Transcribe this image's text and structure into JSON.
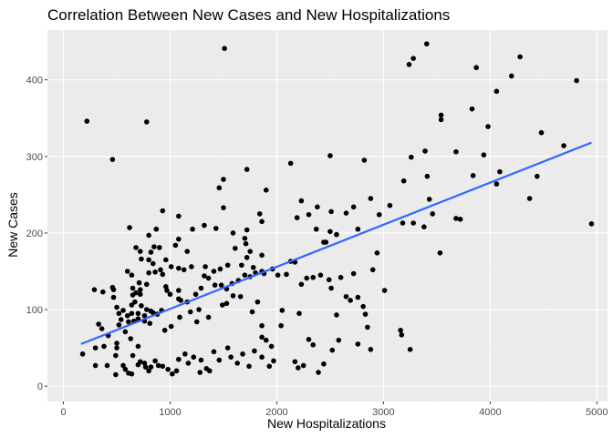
{
  "chart_data": {
    "type": "scatter",
    "title": "Correlation Between New Cases and New Hospitalizations",
    "xlabel": "New Hospitalizations",
    "ylabel": "New Cases",
    "xlim": [
      -150,
      5100
    ],
    "ylim": [
      -20,
      465
    ],
    "xticks": [
      0,
      1000,
      2000,
      3000,
      4000,
      5000
    ],
    "yticks": [
      0,
      100,
      200,
      300,
      400
    ],
    "xtick_labels": [
      "0",
      "1000",
      "2000",
      "3000",
      "4000",
      "5000"
    ],
    "ytick_labels": [
      "0",
      "100",
      "200",
      "300",
      "400"
    ],
    "grid": true,
    "trend_line": {
      "method": "linear",
      "x": [
        165,
        4950
      ],
      "y": [
        55,
        318
      ],
      "color": "#3366FF"
    },
    "colors": {
      "panel": "#EBEBEB",
      "grid_major": "#FFFFFF",
      "grid_minor": "#F2F2F2",
      "point": "#000000"
    },
    "points": [
      [
        220,
        346
      ],
      [
        460,
        296
      ],
      [
        780,
        345
      ],
      [
        1080,
        222
      ],
      [
        930,
        229
      ],
      [
        1510,
        441
      ],
      [
        3405,
        447
      ],
      [
        3280,
        428
      ],
      [
        3240,
        420
      ],
      [
        3870,
        416
      ],
      [
        4280,
        430
      ],
      [
        4200,
        405
      ],
      [
        4810,
        399
      ],
      [
        3830,
        362
      ],
      [
        4060,
        385
      ],
      [
        3540,
        354
      ],
      [
        3540,
        348
      ],
      [
        3980,
        339
      ],
      [
        3680,
        306
      ],
      [
        3390,
        307
      ],
      [
        3260,
        299
      ],
      [
        3940,
        302
      ],
      [
        4480,
        331
      ],
      [
        4690,
        314
      ],
      [
        2130,
        291
      ],
      [
        1720,
        283
      ],
      [
        2500,
        301
      ],
      [
        2820,
        295
      ],
      [
        1500,
        270
      ],
      [
        1460,
        259
      ],
      [
        1900,
        256
      ],
      [
        3840,
        275
      ],
      [
        3410,
        274
      ],
      [
        4090,
        280
      ],
      [
        4060,
        264
      ],
      [
        4370,
        245
      ],
      [
        4440,
        274
      ],
      [
        3190,
        268
      ],
      [
        3430,
        244
      ],
      [
        2880,
        245
      ],
      [
        2720,
        234
      ],
      [
        3460,
        225
      ],
      [
        2960,
        224
      ],
      [
        3060,
        236
      ],
      [
        2650,
        226
      ],
      [
        2300,
        224
      ],
      [
        2230,
        242
      ],
      [
        2190,
        220
      ],
      [
        2380,
        234
      ],
      [
        3680,
        219
      ],
      [
        3180,
        213
      ],
      [
        3280,
        213
      ],
      [
        3380,
        208
      ],
      [
        3720,
        218
      ],
      [
        4950,
        212
      ],
      [
        2510,
        228
      ],
      [
        1500,
        233
      ],
      [
        1430,
        206
      ],
      [
        1210,
        205
      ],
      [
        1320,
        210
      ],
      [
        1720,
        204
      ],
      [
        1590,
        200
      ],
      [
        1860,
        215
      ],
      [
        1840,
        225
      ],
      [
        2370,
        205
      ],
      [
        2560,
        198
      ],
      [
        2500,
        202
      ],
      [
        2760,
        205
      ],
      [
        2440,
        188
      ],
      [
        2460,
        188
      ],
      [
        2940,
        174
      ],
      [
        3530,
        174
      ],
      [
        1080,
        192
      ],
      [
        1160,
        176
      ],
      [
        1700,
        193
      ],
      [
        1710,
        186
      ],
      [
        1610,
        180
      ],
      [
        1750,
        176
      ],
      [
        1860,
        171
      ],
      [
        1720,
        168
      ],
      [
        1670,
        158
      ],
      [
        1780,
        155
      ],
      [
        1540,
        158
      ],
      [
        1470,
        153
      ],
      [
        1330,
        156
      ],
      [
        1200,
        156
      ],
      [
        1130,
        152
      ],
      [
        1080,
        154
      ],
      [
        1010,
        156
      ],
      [
        900,
        181
      ],
      [
        850,
        182
      ],
      [
        680,
        181
      ],
      [
        720,
        176
      ],
      [
        620,
        207
      ],
      [
        800,
        165
      ],
      [
        730,
        166
      ],
      [
        840,
        160
      ],
      [
        600,
        150
      ],
      [
        800,
        148
      ],
      [
        860,
        149
      ],
      [
        960,
        165
      ],
      [
        910,
        152
      ],
      [
        930,
        146
      ],
      [
        960,
        130
      ],
      [
        970,
        125
      ],
      [
        1080,
        125
      ],
      [
        1000,
        120
      ],
      [
        1080,
        114
      ],
      [
        1100,
        112
      ],
      [
        1160,
        110
      ],
      [
        1240,
        120
      ],
      [
        1290,
        128
      ],
      [
        1320,
        144
      ],
      [
        1360,
        141
      ],
      [
        1420,
        132
      ],
      [
        1480,
        132
      ],
      [
        1530,
        127
      ],
      [
        1580,
        134
      ],
      [
        1640,
        138
      ],
      [
        1700,
        145
      ],
      [
        1750,
        143
      ],
      [
        1800,
        148
      ],
      [
        1860,
        150
      ],
      [
        1880,
        147
      ],
      [
        1960,
        153
      ],
      [
        2010,
        145
      ],
      [
        2090,
        146
      ],
      [
        2130,
        163
      ],
      [
        2170,
        162
      ],
      [
        2230,
        133
      ],
      [
        2280,
        141
      ],
      [
        2340,
        142
      ],
      [
        2410,
        145
      ],
      [
        2490,
        139
      ],
      [
        2510,
        128
      ],
      [
        2600,
        142
      ],
      [
        2650,
        117
      ],
      [
        2690,
        112
      ],
      [
        2760,
        116
      ],
      [
        2810,
        104
      ],
      [
        2830,
        94
      ],
      [
        2900,
        152
      ],
      [
        2720,
        147
      ],
      [
        3010,
        125
      ],
      [
        2560,
        93
      ],
      [
        2210,
        95
      ],
      [
        2050,
        99
      ],
      [
        2040,
        79
      ],
      [
        1860,
        79
      ],
      [
        1820,
        110
      ],
      [
        1770,
        97
      ],
      [
        1660,
        117
      ],
      [
        1530,
        108
      ],
      [
        1490,
        106
      ],
      [
        1360,
        90
      ],
      [
        1270,
        100
      ],
      [
        1190,
        97
      ],
      [
        1090,
        90
      ],
      [
        1010,
        78
      ],
      [
        950,
        73
      ],
      [
        920,
        99
      ],
      [
        880,
        94
      ],
      [
        840,
        96
      ],
      [
        780,
        100
      ],
      [
        730,
        105
      ],
      [
        670,
        110
      ],
      [
        640,
        106
      ],
      [
        700,
        88
      ],
      [
        760,
        85
      ],
      [
        810,
        82
      ],
      [
        660,
        85
      ],
      [
        610,
        84
      ],
      [
        580,
        71
      ],
      [
        540,
        87
      ],
      [
        520,
        80
      ],
      [
        470,
        126
      ],
      [
        460,
        129
      ],
      [
        470,
        116
      ],
      [
        500,
        103
      ],
      [
        520,
        95
      ],
      [
        560,
        99
      ],
      [
        600,
        92
      ],
      [
        640,
        95
      ],
      [
        700,
        95
      ],
      [
        760,
        92
      ],
      [
        820,
        98
      ],
      [
        680,
        122
      ],
      [
        720,
        126
      ],
      [
        780,
        133
      ],
      [
        720,
        120
      ],
      [
        650,
        128
      ],
      [
        650,
        119
      ],
      [
        370,
        123
      ],
      [
        330,
        81
      ],
      [
        290,
        126
      ],
      [
        360,
        75
      ],
      [
        420,
        66
      ],
      [
        180,
        42
      ],
      [
        300,
        50
      ],
      [
        380,
        52
      ],
      [
        410,
        27
      ],
      [
        300,
        27
      ],
      [
        490,
        40
      ],
      [
        500,
        56
      ],
      [
        500,
        50
      ],
      [
        490,
        15
      ],
      [
        560,
        27
      ],
      [
        580,
        22
      ],
      [
        610,
        17
      ],
      [
        640,
        16
      ],
      [
        700,
        28
      ],
      [
        720,
        32
      ],
      [
        760,
        30
      ],
      [
        770,
        25
      ],
      [
        800,
        20
      ],
      [
        820,
        25
      ],
      [
        860,
        33
      ],
      [
        890,
        27
      ],
      [
        930,
        26
      ],
      [
        980,
        22
      ],
      [
        1020,
        16
      ],
      [
        1060,
        20
      ],
      [
        1080,
        35
      ],
      [
        1140,
        42
      ],
      [
        1170,
        30
      ],
      [
        1220,
        38
      ],
      [
        1280,
        18
      ],
      [
        1290,
        34
      ],
      [
        1340,
        23
      ],
      [
        1370,
        20
      ],
      [
        1410,
        45
      ],
      [
        1460,
        34
      ],
      [
        1540,
        50
      ],
      [
        1570,
        38
      ],
      [
        1630,
        30
      ],
      [
        1680,
        42
      ],
      [
        1740,
        26
      ],
      [
        1790,
        46
      ],
      [
        1860,
        38
      ],
      [
        1900,
        60
      ],
      [
        1950,
        52
      ],
      [
        1970,
        33
      ],
      [
        1930,
        26
      ],
      [
        2170,
        32
      ],
      [
        2200,
        24
      ],
      [
        2250,
        27
      ],
      [
        2300,
        61
      ],
      [
        2340,
        54
      ],
      [
        2390,
        18
      ],
      [
        2440,
        29
      ],
      [
        2520,
        47
      ],
      [
        2580,
        60
      ],
      [
        2760,
        55
      ],
      [
        2850,
        77
      ],
      [
        2880,
        48
      ],
      [
        3250,
        48
      ],
      [
        3160,
        73
      ],
      [
        3170,
        67
      ],
      [
        1590,
        118
      ],
      [
        1410,
        150
      ],
      [
        1050,
        184
      ],
      [
        820,
        175
      ],
      [
        800,
        197
      ],
      [
        870,
        205
      ],
      [
        710,
        135
      ],
      [
        630,
        62
      ],
      [
        650,
        40
      ],
      [
        700,
        52
      ],
      [
        640,
        145
      ],
      [
        1250,
        84
      ],
      [
        1860,
        64
      ]
    ]
  }
}
